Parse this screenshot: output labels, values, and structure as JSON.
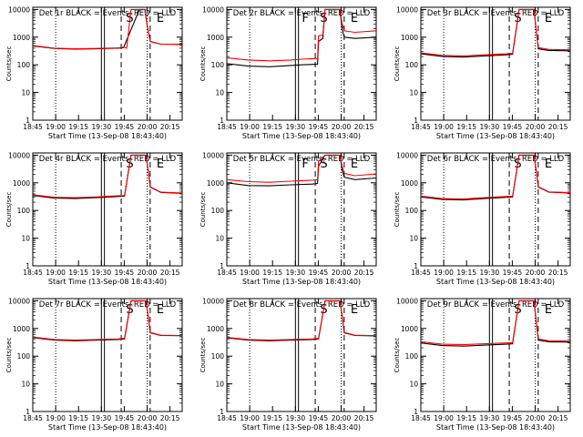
{
  "chart_data": {
    "type": "line",
    "xlabel": "Start Time (13-Sep-08 18:43:40)",
    "ylabel": "Counts/sec",
    "x_tick_labels": [
      "18:45",
      "19:00",
      "19:15",
      "19:30",
      "19:45",
      "20:00",
      "20:15"
    ],
    "y_tick_labels": [
      "1",
      "10",
      "100",
      "1000",
      "10000"
    ],
    "y_scale": "log",
    "ylim": [
      1,
      12000
    ],
    "xlim": [
      "18:45",
      "20:23"
    ],
    "markers": {
      "dotted": [
        "19:00",
        "20:00"
      ],
      "solid": [
        "19:30",
        "19:32"
      ],
      "dashed": [
        "19:43",
        "20:02"
      ],
      "letters": [
        {
          "text": "F",
          "at": "19:33"
        },
        {
          "text": "S",
          "at": "19:45"
        },
        {
          "text": "E",
          "at": "20:05"
        }
      ]
    },
    "series_colors": {
      "events": "#000000",
      "lld": "#ff0000"
    },
    "panels": [
      {
        "title": "Det 1r BLACK = Events, RED = LLD",
        "letters": [
          "",
          "S",
          "E"
        ],
        "events": [
          [
            0,
            480
          ],
          [
            20,
            390
          ],
          [
            40,
            370
          ],
          [
            60,
            380
          ],
          [
            70,
            390
          ],
          [
            80,
            400
          ],
          [
            85,
            420
          ],
          [
            100,
            10000
          ],
          [
            105,
            10000
          ],
          [
            107,
            3000
          ],
          [
            110,
            700
          ],
          [
            120,
            560
          ],
          [
            140,
            550
          ]
        ],
        "lld": [
          [
            0,
            500
          ],
          [
            20,
            400
          ],
          [
            40,
            380
          ],
          [
            60,
            390
          ],
          [
            70,
            400
          ],
          [
            80,
            410
          ],
          [
            85,
            430
          ],
          [
            88,
            400
          ],
          [
            92,
            10000
          ],
          [
            105,
            10000
          ],
          [
            107,
            3000
          ],
          [
            110,
            700
          ],
          [
            120,
            560
          ],
          [
            140,
            550
          ]
        ]
      },
      {
        "title": "Det 2r BLACK = Events, RED = LLD",
        "letters": [
          "F",
          "S",
          "E"
        ],
        "events": [
          [
            0,
            110
          ],
          [
            20,
            90
          ],
          [
            40,
            85
          ],
          [
            60,
            95
          ],
          [
            70,
            100
          ],
          [
            85,
            105
          ],
          [
            86,
            700
          ],
          [
            90,
            900
          ],
          [
            92,
            10000
          ],
          [
            106,
            10000
          ],
          [
            108,
            2000
          ],
          [
            110,
            1000
          ],
          [
            120,
            900
          ],
          [
            140,
            1000
          ]
        ],
        "lld": [
          [
            0,
            180
          ],
          [
            20,
            150
          ],
          [
            40,
            140
          ],
          [
            60,
            150
          ],
          [
            70,
            160
          ],
          [
            85,
            170
          ],
          [
            86,
            1100
          ],
          [
            90,
            1200
          ],
          [
            92,
            10000
          ],
          [
            106,
            10000
          ],
          [
            108,
            3000
          ],
          [
            110,
            1700
          ],
          [
            120,
            1500
          ],
          [
            140,
            1700
          ]
        ]
      },
      {
        "title": "Det 3r BLACK = Events, RED = LLD",
        "letters": [
          "",
          "S",
          "E"
        ],
        "events": [
          [
            0,
            250
          ],
          [
            20,
            200
          ],
          [
            40,
            190
          ],
          [
            60,
            210
          ],
          [
            80,
            230
          ],
          [
            86,
            240
          ],
          [
            92,
            10000
          ],
          [
            106,
            10000
          ],
          [
            108,
            2000
          ],
          [
            110,
            380
          ],
          [
            120,
            330
          ],
          [
            140,
            320
          ]
        ],
        "lld": [
          [
            0,
            270
          ],
          [
            20,
            220
          ],
          [
            40,
            210
          ],
          [
            60,
            230
          ],
          [
            80,
            250
          ],
          [
            86,
            260
          ],
          [
            92,
            10000
          ],
          [
            106,
            10000
          ],
          [
            108,
            2000
          ],
          [
            110,
            420
          ],
          [
            120,
            360
          ],
          [
            140,
            350
          ]
        ]
      },
      {
        "title": "Det 4r BLACK = Events, RED = LLD",
        "letters": [
          "",
          "S",
          "E"
        ],
        "events": [
          [
            0,
            350
          ],
          [
            20,
            280
          ],
          [
            40,
            270
          ],
          [
            60,
            290
          ],
          [
            80,
            320
          ],
          [
            86,
            330
          ],
          [
            92,
            10000
          ],
          [
            106,
            10000
          ],
          [
            108,
            3000
          ],
          [
            110,
            700
          ],
          [
            120,
            450
          ],
          [
            140,
            420
          ]
        ],
        "lld": [
          [
            0,
            370
          ],
          [
            20,
            300
          ],
          [
            40,
            290
          ],
          [
            60,
            310
          ],
          [
            80,
            340
          ],
          [
            86,
            350
          ],
          [
            92,
            10000
          ],
          [
            106,
            10000
          ],
          [
            108,
            3000
          ],
          [
            110,
            720
          ],
          [
            120,
            460
          ],
          [
            140,
            430
          ]
        ]
      },
      {
        "title": "Det 5r BLACK = Events, RED = LLD",
        "letters": [
          "F",
          "S",
          "E"
        ],
        "events": [
          [
            0,
            1000
          ],
          [
            20,
            800
          ],
          [
            40,
            780
          ],
          [
            60,
            850
          ],
          [
            80,
            900
          ],
          [
            85,
            950
          ],
          [
            86,
            4000
          ],
          [
            92,
            10000
          ],
          [
            106,
            10000
          ],
          [
            108,
            3000
          ],
          [
            110,
            1600
          ],
          [
            120,
            1300
          ],
          [
            140,
            1500
          ]
        ],
        "lld": [
          [
            0,
            1300
          ],
          [
            20,
            1100
          ],
          [
            40,
            1050
          ],
          [
            60,
            1150
          ],
          [
            80,
            1250
          ],
          [
            85,
            1300
          ],
          [
            86,
            6000
          ],
          [
            92,
            10000
          ],
          [
            106,
            10000
          ],
          [
            108,
            4000
          ],
          [
            110,
            2200
          ],
          [
            120,
            1800
          ],
          [
            140,
            2100
          ]
        ]
      },
      {
        "title": "Det 6r BLACK = Events, RED = LLD",
        "letters": [
          "",
          "S",
          "E"
        ],
        "events": [
          [
            0,
            310
          ],
          [
            20,
            250
          ],
          [
            40,
            240
          ],
          [
            60,
            270
          ],
          [
            80,
            300
          ],
          [
            86,
            310
          ],
          [
            92,
            10000
          ],
          [
            106,
            10000
          ],
          [
            108,
            3000
          ],
          [
            110,
            700
          ],
          [
            120,
            460
          ],
          [
            140,
            430
          ]
        ],
        "lld": [
          [
            0,
            330
          ],
          [
            20,
            270
          ],
          [
            40,
            260
          ],
          [
            60,
            290
          ],
          [
            80,
            320
          ],
          [
            86,
            330
          ],
          [
            92,
            10000
          ],
          [
            106,
            10000
          ],
          [
            108,
            3000
          ],
          [
            110,
            720
          ],
          [
            120,
            470
          ],
          [
            140,
            440
          ]
        ]
      },
      {
        "title": "Det 7r BLACK = Events, RED = LLD",
        "letters": [
          "",
          "S",
          "E"
        ],
        "events": [
          [
            0,
            470
          ],
          [
            20,
            380
          ],
          [
            40,
            360
          ],
          [
            60,
            380
          ],
          [
            80,
            400
          ],
          [
            86,
            420
          ],
          [
            92,
            10000
          ],
          [
            106,
            10000
          ],
          [
            108,
            3000
          ],
          [
            110,
            700
          ],
          [
            120,
            560
          ],
          [
            140,
            550
          ]
        ],
        "lld": [
          [
            0,
            490
          ],
          [
            20,
            400
          ],
          [
            40,
            380
          ],
          [
            60,
            400
          ],
          [
            80,
            420
          ],
          [
            86,
            440
          ],
          [
            92,
            10000
          ],
          [
            106,
            10000
          ],
          [
            108,
            3000
          ],
          [
            110,
            720
          ],
          [
            120,
            570
          ],
          [
            140,
            560
          ]
        ]
      },
      {
        "title": "Det 8r BLACK = Events, RED = LLD",
        "letters": [
          "",
          "S",
          "E"
        ],
        "events": [
          [
            0,
            460
          ],
          [
            20,
            380
          ],
          [
            40,
            360
          ],
          [
            60,
            380
          ],
          [
            80,
            400
          ],
          [
            86,
            420
          ],
          [
            92,
            10000
          ],
          [
            106,
            10000
          ],
          [
            108,
            3000
          ],
          [
            110,
            700
          ],
          [
            120,
            560
          ],
          [
            140,
            540
          ]
        ],
        "lld": [
          [
            0,
            480
          ],
          [
            20,
            400
          ],
          [
            40,
            380
          ],
          [
            60,
            400
          ],
          [
            80,
            420
          ],
          [
            86,
            440
          ],
          [
            92,
            10000
          ],
          [
            106,
            10000
          ],
          [
            108,
            3000
          ],
          [
            110,
            720
          ],
          [
            120,
            570
          ],
          [
            140,
            550
          ]
        ]
      },
      {
        "title": "Det 9r BLACK = Events, RED = LLD",
        "letters": [
          "",
          "S",
          "E"
        ],
        "events": [
          [
            0,
            300
          ],
          [
            20,
            240
          ],
          [
            40,
            230
          ],
          [
            60,
            250
          ],
          [
            80,
            270
          ],
          [
            86,
            280
          ],
          [
            92,
            10000
          ],
          [
            106,
            10000
          ],
          [
            108,
            2000
          ],
          [
            110,
            380
          ],
          [
            120,
            330
          ],
          [
            140,
            320
          ]
        ],
        "lld": [
          [
            0,
            330
          ],
          [
            20,
            270
          ],
          [
            40,
            260
          ],
          [
            60,
            280
          ],
          [
            80,
            300
          ],
          [
            86,
            310
          ],
          [
            92,
            10000
          ],
          [
            106,
            10000
          ],
          [
            108,
            2000
          ],
          [
            110,
            420
          ],
          [
            120,
            360
          ],
          [
            140,
            350
          ]
        ]
      }
    ]
  }
}
